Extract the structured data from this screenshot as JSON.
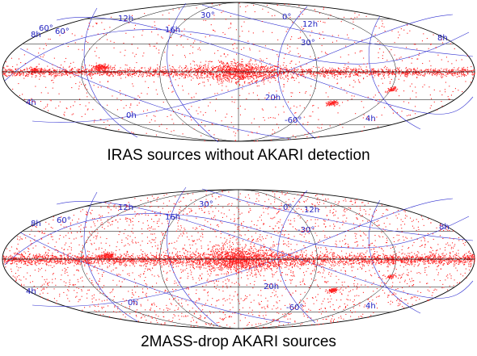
{
  "panels": [
    {
      "caption": "IRAS sources without AKARI detection",
      "labels": [
        "12h",
        "16h",
        "30°",
        "0°",
        "12h",
        "8h",
        "60°",
        "8h",
        "30°",
        "20h",
        "4h",
        "0h",
        "-60°",
        "4h",
        "60°"
      ],
      "colors": {
        "points": "#ff2020",
        "galactic_grid": "#000000",
        "equatorial_grid": "#3030d0"
      }
    },
    {
      "caption": "2MASS-drop AKARI sources",
      "labels": [
        "12h",
        "16h",
        "30°",
        "0°",
        "12h",
        "8h",
        "60°",
        "-30°",
        "8h",
        "20h",
        "4h",
        "0h",
        "-60°",
        "4h"
      ],
      "colors": {
        "points": "#ff2020",
        "galactic_grid": "#000000",
        "equatorial_grid": "#3030d0"
      }
    }
  ]
}
